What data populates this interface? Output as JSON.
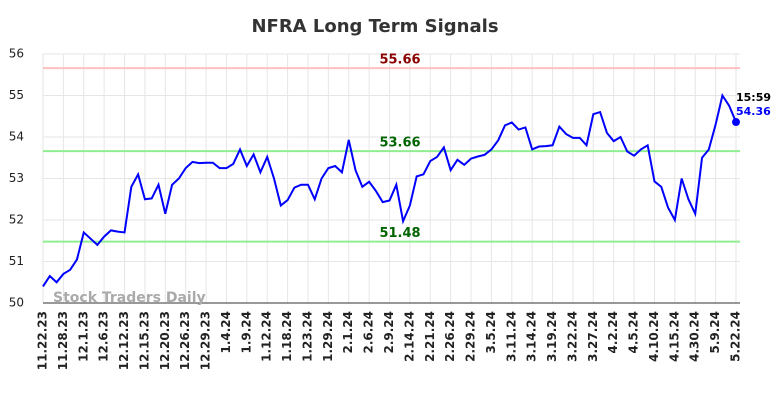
{
  "chart_data": {
    "type": "line",
    "title": "NFRA Long Term Signals",
    "categories": [
      "11.22.23",
      null,
      null,
      "11.28.23",
      null,
      null,
      "12.1.23",
      null,
      null,
      "12.6.23",
      null,
      null,
      "12.12.23",
      null,
      null,
      "12.15.23",
      null,
      null,
      "12.20.23",
      null,
      null,
      "12.26.23",
      null,
      null,
      "12.29.23",
      null,
      null,
      "1.4.24",
      null,
      null,
      "1.9.24",
      null,
      null,
      "1.12.24",
      null,
      null,
      "1.18.24",
      null,
      null,
      "1.23.24",
      null,
      null,
      "1.29.24",
      null,
      null,
      "2.1.24",
      null,
      null,
      "2.6.24",
      null,
      null,
      "2.9.24",
      null,
      null,
      "2.14.24",
      null,
      null,
      "2.21.24",
      null,
      null,
      "2.26.24",
      null,
      null,
      "2.29.24",
      null,
      null,
      "3.5.24",
      null,
      null,
      "3.11.24",
      null,
      null,
      "3.14.24",
      null,
      null,
      "3.19.24",
      null,
      null,
      "3.22.24",
      null,
      null,
      "3.27.24",
      null,
      null,
      "4.2.24",
      null,
      null,
      "4.5.24",
      null,
      null,
      "4.10.24",
      null,
      null,
      "4.15.24",
      null,
      null,
      "4.30.24",
      null,
      null,
      "5.9.24",
      null,
      null,
      "5.22.24"
    ],
    "values": [
      50.4,
      50.65,
      50.5,
      50.7,
      50.8,
      51.05,
      51.7,
      51.55,
      51.4,
      51.6,
      51.75,
      51.72,
      51.7,
      52.8,
      53.1,
      52.5,
      52.52,
      52.85,
      52.15,
      52.85,
      53.0,
      53.25,
      53.4,
      53.37,
      53.38,
      53.38,
      53.25,
      53.25,
      53.35,
      53.7,
      53.3,
      53.58,
      53.15,
      53.52,
      53.0,
      52.35,
      52.48,
      52.78,
      52.85,
      52.85,
      52.5,
      53.0,
      53.25,
      53.3,
      53.15,
      53.93,
      53.2,
      52.8,
      52.92,
      52.7,
      52.43,
      52.47,
      52.85,
      51.97,
      52.35,
      53.05,
      53.1,
      53.42,
      53.52,
      53.75,
      53.2,
      53.45,
      53.33,
      53.48,
      53.53,
      53.57,
      53.7,
      53.92,
      54.28,
      54.35,
      54.18,
      54.23,
      53.7,
      53.77,
      53.78,
      53.8,
      54.25,
      54.07,
      53.98,
      53.98,
      53.8,
      54.55,
      54.6,
      54.1,
      53.9,
      54.0,
      53.65,
      53.55,
      53.7,
      53.8,
      52.93,
      52.8,
      52.3,
      52.0,
      53.0,
      52.5,
      52.15,
      53.5,
      53.7,
      54.3,
      55.0,
      54.75,
      54.36
    ],
    "color": "#0000ff",
    "ylim": [
      50,
      56
    ],
    "yticks": [
      50,
      51,
      52,
      53,
      54,
      55,
      56
    ],
    "grid": true,
    "reference_lines": [
      {
        "value": 55.66,
        "color": "#ffc0c0",
        "label_color": "#8b0000"
      },
      {
        "value": 53.66,
        "color": "#90ee90",
        "label_color": "#006400"
      },
      {
        "value": 51.48,
        "color": "#90ee90",
        "label_color": "#006400"
      }
    ],
    "last_time_label": "15:59",
    "watermark": "Stock Traders Daily"
  }
}
